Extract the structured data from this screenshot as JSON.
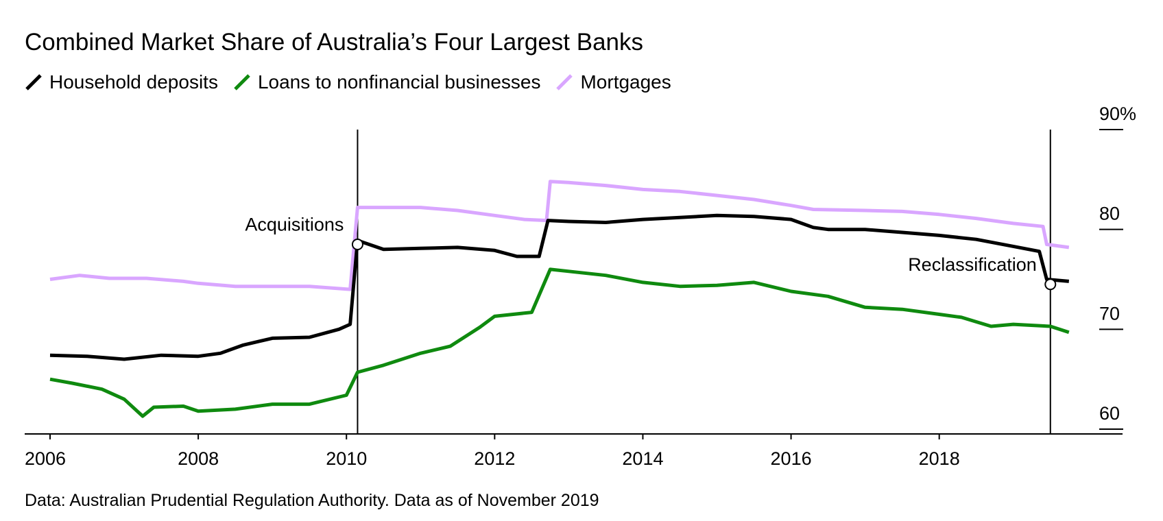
{
  "title": "Combined Market Share of Australia’s Four Largest Banks",
  "source": "Data: Australian Prudential Regulation Authority. Data as of November 2019",
  "chart_data": {
    "type": "line",
    "title": "Combined Market Share of Australia’s Four Largest Banks",
    "xlabel": "",
    "ylabel": "",
    "xlim": [
      2006.0,
      2019.9
    ],
    "ylim": [
      60,
      90
    ],
    "x_ticks": [
      2006,
      2008,
      2010,
      2012,
      2014,
      2016,
      2018
    ],
    "x_tick_labels": [
      "2006",
      "2008",
      "2010",
      "2012",
      "2014",
      "2016",
      "2018"
    ],
    "y_ticks": [
      60,
      70,
      80,
      90
    ],
    "y_tick_labels": [
      "60",
      "70",
      "80",
      "90%"
    ],
    "grid": false,
    "legend_position": "top-left",
    "annotations": [
      {
        "label": "Acquisitions",
        "x": 2010.15,
        "y": 78.5,
        "side": "left"
      },
      {
        "label": "Reclassification",
        "x": 2019.5,
        "y": 74.5,
        "side": "left"
      }
    ],
    "series": [
      {
        "name": "Household deposits",
        "color": "#000000",
        "points": [
          [
            2006.0,
            67.4
          ],
          [
            2006.5,
            67.3
          ],
          [
            2007.0,
            67.0
          ],
          [
            2007.5,
            67.4
          ],
          [
            2008.0,
            67.3
          ],
          [
            2008.3,
            67.6
          ],
          [
            2008.6,
            68.4
          ],
          [
            2009.0,
            69.1
          ],
          [
            2009.5,
            69.2
          ],
          [
            2009.9,
            70.0
          ],
          [
            2010.05,
            70.5
          ],
          [
            2010.15,
            78.9
          ],
          [
            2010.5,
            78.0
          ],
          [
            2011.0,
            78.1
          ],
          [
            2011.5,
            78.2
          ],
          [
            2012.0,
            77.9
          ],
          [
            2012.3,
            77.3
          ],
          [
            2012.6,
            77.3
          ],
          [
            2012.72,
            80.9
          ],
          [
            2013.0,
            80.8
          ],
          [
            2013.5,
            80.7
          ],
          [
            2014.0,
            81.0
          ],
          [
            2014.5,
            81.2
          ],
          [
            2015.0,
            81.4
          ],
          [
            2015.5,
            81.3
          ],
          [
            2016.0,
            81.0
          ],
          [
            2016.3,
            80.2
          ],
          [
            2016.5,
            80.0
          ],
          [
            2017.0,
            80.0
          ],
          [
            2017.5,
            79.7
          ],
          [
            2018.0,
            79.4
          ],
          [
            2018.5,
            79.0
          ],
          [
            2019.0,
            78.3
          ],
          [
            2019.35,
            77.8
          ],
          [
            2019.45,
            75.0
          ],
          [
            2019.75,
            74.8
          ]
        ]
      },
      {
        "name": "Loans to nonfinancial businesses",
        "color": "#0f8a0f",
        "points": [
          [
            2006.0,
            65.0
          ],
          [
            2006.3,
            64.6
          ],
          [
            2006.7,
            64.0
          ],
          [
            2007.0,
            63.0
          ],
          [
            2007.25,
            61.3
          ],
          [
            2007.4,
            62.2
          ],
          [
            2007.8,
            62.3
          ],
          [
            2008.0,
            61.8
          ],
          [
            2008.5,
            62.0
          ],
          [
            2009.0,
            62.5
          ],
          [
            2009.5,
            62.5
          ],
          [
            2010.0,
            63.4
          ],
          [
            2010.15,
            65.7
          ],
          [
            2010.5,
            66.4
          ],
          [
            2011.0,
            67.6
          ],
          [
            2011.4,
            68.3
          ],
          [
            2011.8,
            70.2
          ],
          [
            2012.0,
            71.3
          ],
          [
            2012.5,
            71.7
          ],
          [
            2012.75,
            76.0
          ],
          [
            2013.0,
            75.8
          ],
          [
            2013.5,
            75.4
          ],
          [
            2014.0,
            74.7
          ],
          [
            2014.5,
            74.3
          ],
          [
            2015.0,
            74.4
          ],
          [
            2015.5,
            74.7
          ],
          [
            2016.0,
            73.8
          ],
          [
            2016.5,
            73.3
          ],
          [
            2017.0,
            72.2
          ],
          [
            2017.5,
            72.0
          ],
          [
            2018.0,
            71.5
          ],
          [
            2018.3,
            71.2
          ],
          [
            2018.7,
            70.3
          ],
          [
            2019.0,
            70.5
          ],
          [
            2019.5,
            70.3
          ],
          [
            2019.75,
            69.7
          ]
        ]
      },
      {
        "name": "Mortgages",
        "color": "#d9a6ff",
        "points": [
          [
            2006.0,
            75.0
          ],
          [
            2006.4,
            75.4
          ],
          [
            2006.8,
            75.1
          ],
          [
            2007.3,
            75.1
          ],
          [
            2007.8,
            74.8
          ],
          [
            2008.0,
            74.6
          ],
          [
            2008.5,
            74.3
          ],
          [
            2009.0,
            74.3
          ],
          [
            2009.5,
            74.3
          ],
          [
            2010.05,
            74.0
          ],
          [
            2010.15,
            82.2
          ],
          [
            2010.5,
            82.2
          ],
          [
            2011.0,
            82.2
          ],
          [
            2011.5,
            81.9
          ],
          [
            2012.0,
            81.4
          ],
          [
            2012.4,
            81.0
          ],
          [
            2012.7,
            80.9
          ],
          [
            2012.75,
            84.8
          ],
          [
            2013.0,
            84.7
          ],
          [
            2013.5,
            84.4
          ],
          [
            2014.0,
            84.0
          ],
          [
            2014.5,
            83.8
          ],
          [
            2015.0,
            83.4
          ],
          [
            2015.5,
            83.0
          ],
          [
            2016.0,
            82.4
          ],
          [
            2016.3,
            82.0
          ],
          [
            2017.0,
            81.9
          ],
          [
            2017.5,
            81.8
          ],
          [
            2018.0,
            81.5
          ],
          [
            2018.5,
            81.1
          ],
          [
            2019.0,
            80.6
          ],
          [
            2019.4,
            80.3
          ],
          [
            2019.45,
            78.5
          ],
          [
            2019.75,
            78.2
          ]
        ]
      }
    ]
  }
}
